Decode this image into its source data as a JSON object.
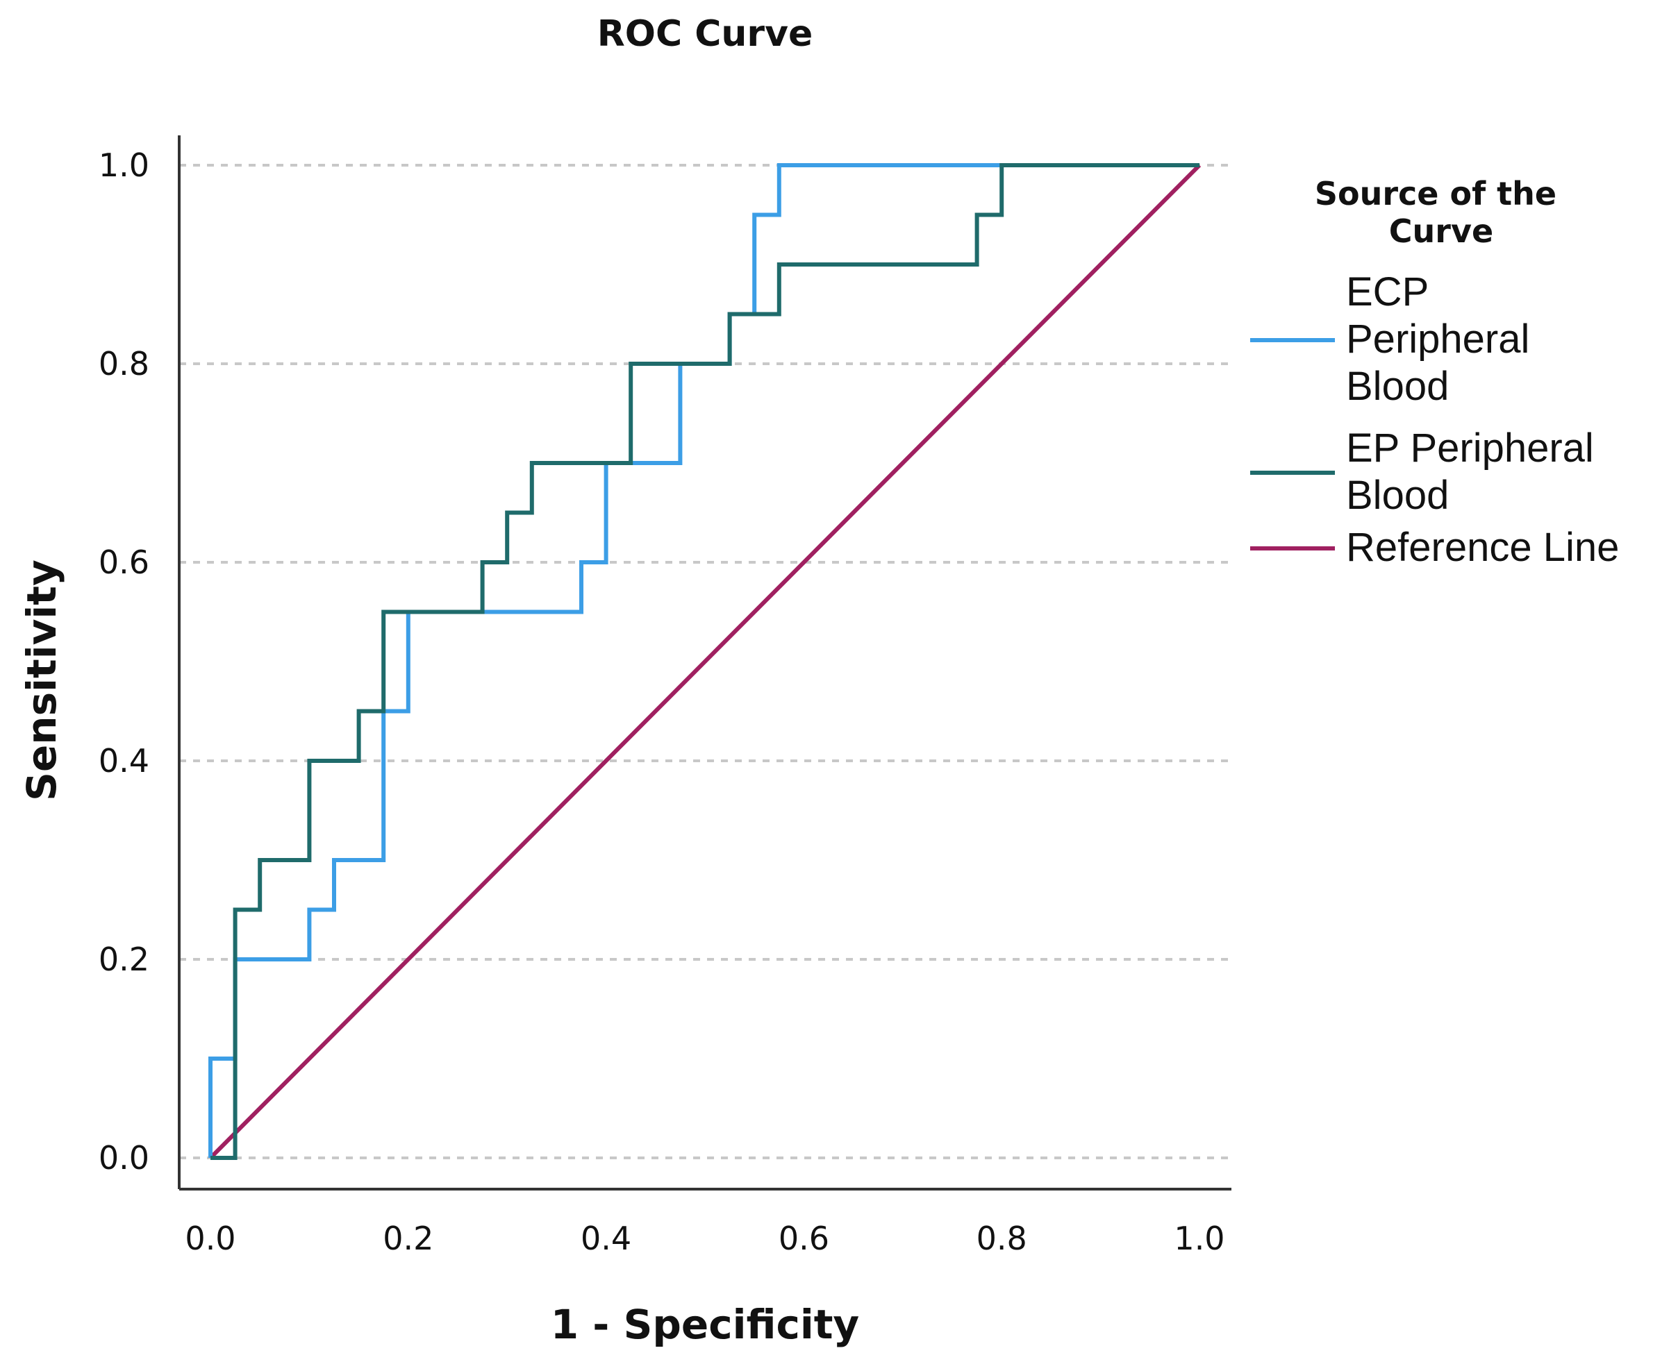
{
  "colors": {
    "ecp": "#3C9EE6",
    "ep": "#1F6B6B",
    "reference": "#A02060",
    "grid": "#C8C8C8",
    "axis": "#333333"
  },
  "chart_data": {
    "type": "line",
    "title": "ROC Curve",
    "xlabel": "1 - Specificity",
    "ylabel": "Sensitivity",
    "xlim": [
      0,
      1
    ],
    "ylim": [
      0,
      1
    ],
    "xticks": [
      "0.0",
      "0.2",
      "0.4",
      "0.6",
      "0.8",
      "1.0"
    ],
    "yticks": [
      "0.0",
      "0.2",
      "0.4",
      "0.6",
      "0.8",
      "1.0"
    ],
    "grid": "horizontal dashed",
    "legend": {
      "title": "Source of the Curve",
      "position": "right",
      "entries": [
        {
          "label_lines": [
            "ECP",
            "Peripheral",
            "Blood"
          ],
          "color_key": "ecp"
        },
        {
          "label_lines": [
            "EP Peripheral",
            "Blood"
          ],
          "color_key": "ep"
        },
        {
          "label_lines": [
            "Reference Line"
          ],
          "color_key": "reference"
        }
      ]
    },
    "series": [
      {
        "name": "ECP Peripheral Blood",
        "color_key": "ecp",
        "step": true,
        "x": [
          0,
          0,
          0.025,
          0.025,
          0.1,
          0.1,
          0.125,
          0.125,
          0.175,
          0.175,
          0.2,
          0.2,
          0.375,
          0.375,
          0.4,
          0.4,
          0.475,
          0.475,
          0.525,
          0.525,
          0.55,
          0.55,
          0.575,
          0.575,
          1.0
        ],
        "y": [
          0,
          0.1,
          0.1,
          0.2,
          0.2,
          0.25,
          0.25,
          0.3,
          0.3,
          0.45,
          0.45,
          0.55,
          0.55,
          0.6,
          0.6,
          0.7,
          0.7,
          0.8,
          0.8,
          0.85,
          0.85,
          0.95,
          0.95,
          1.0,
          1.0
        ]
      },
      {
        "name": "EP Peripheral Blood",
        "color_key": "ep",
        "step": true,
        "x": [
          0,
          0.025,
          0.025,
          0.05,
          0.05,
          0.1,
          0.1,
          0.15,
          0.15,
          0.175,
          0.175,
          0.275,
          0.275,
          0.3,
          0.3,
          0.325,
          0.325,
          0.425,
          0.425,
          0.525,
          0.525,
          0.575,
          0.575,
          0.775,
          0.775,
          0.8,
          0.8,
          1.0
        ],
        "y": [
          0,
          0,
          0.25,
          0.25,
          0.3,
          0.3,
          0.4,
          0.4,
          0.45,
          0.45,
          0.55,
          0.55,
          0.6,
          0.6,
          0.65,
          0.65,
          0.7,
          0.7,
          0.8,
          0.8,
          0.85,
          0.85,
          0.9,
          0.9,
          0.95,
          0.95,
          1.0,
          1.0
        ]
      },
      {
        "name": "Reference Line",
        "color_key": "reference",
        "step": false,
        "x": [
          0,
          1
        ],
        "y": [
          0,
          1
        ]
      }
    ]
  }
}
